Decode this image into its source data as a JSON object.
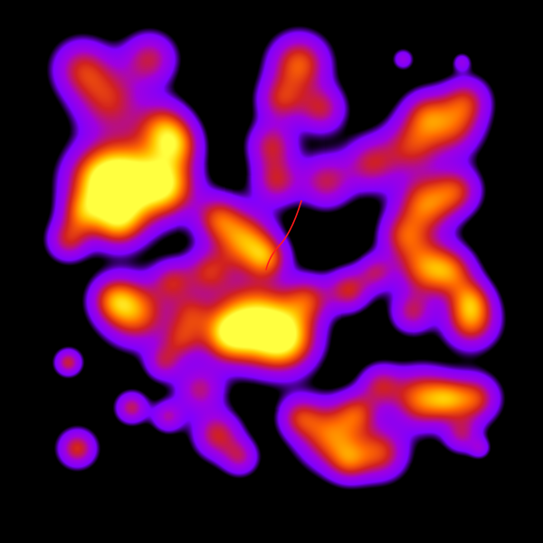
{
  "image": {
    "subject": "heatmap",
    "colormap": [
      "#000000",
      "#7f00ff",
      "#a000e0",
      "#d02020",
      "#ff6a00",
      "#ffc800",
      "#ffff40"
    ],
    "background_color": "#000000",
    "trace_color": "#ff1a1a"
  }
}
